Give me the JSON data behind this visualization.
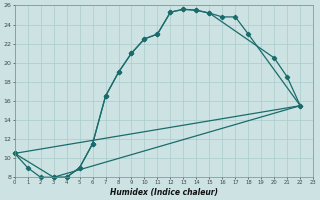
{
  "xlabel": "Humidex (Indice chaleur)",
  "bg_color": "#cde3e3",
  "grid_color": "#aacccc",
  "line_color": "#1a6b6b",
  "curve1_x": [
    0,
    1,
    2,
    3,
    4,
    5,
    6,
    7,
    8,
    9,
    10,
    11,
    12,
    13,
    14,
    15,
    16,
    17,
    18,
    22
  ],
  "curve1_y": [
    10.5,
    9.0,
    8.0,
    8.0,
    8.0,
    9.0,
    11.5,
    16.5,
    19.0,
    21.0,
    22.5,
    23.0,
    25.3,
    25.6,
    25.5,
    25.2,
    24.8,
    24.8,
    23.0,
    15.5
  ],
  "curve2_x": [
    0,
    3,
    4,
    5,
    6,
    7,
    8,
    9,
    10,
    11,
    12,
    13,
    14,
    15,
    20,
    21,
    22
  ],
  "curve2_y": [
    10.5,
    8.0,
    8.0,
    9.0,
    11.5,
    16.5,
    19.0,
    21.0,
    22.5,
    23.0,
    25.3,
    25.6,
    25.5,
    25.2,
    20.5,
    18.5,
    15.5
  ],
  "line3_x": [
    3,
    22
  ],
  "line3_y": [
    8.0,
    15.5
  ],
  "line4_x": [
    0,
    22
  ],
  "line4_y": [
    10.5,
    15.5
  ],
  "xlim": [
    0,
    23
  ],
  "ylim": [
    8,
    26
  ],
  "yticks": [
    8,
    10,
    12,
    14,
    16,
    18,
    20,
    22,
    24,
    26
  ],
  "xticks": [
    0,
    1,
    2,
    3,
    4,
    5,
    6,
    7,
    8,
    9,
    10,
    11,
    12,
    13,
    14,
    15,
    16,
    17,
    18,
    19,
    20,
    21,
    22,
    23
  ]
}
